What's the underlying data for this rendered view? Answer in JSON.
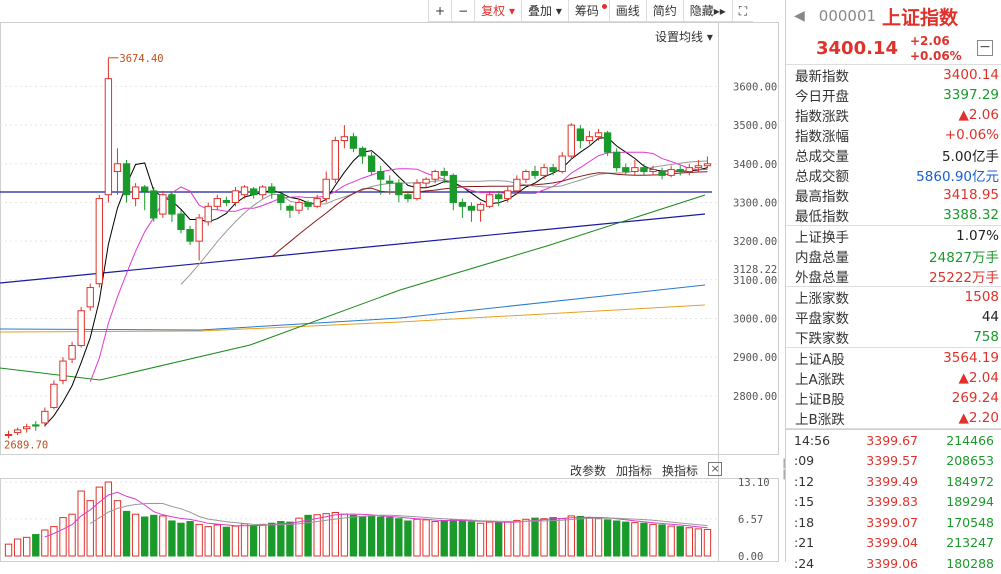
{
  "toolbar": {
    "items": [
      "+",
      "−",
      "复权",
      "叠加",
      "筹码",
      "画线",
      "简约",
      "隐藏"
    ],
    "fullscreen": "⛶"
  },
  "ma_setting": "设置均线",
  "sub_controls": {
    "a": "改参数",
    "b": "加指标",
    "c": "换指标",
    "close": "×"
  },
  "panel": {
    "code": "000001",
    "name": "上证指数",
    "price": "3400.14",
    "change": "+2.06",
    "change_pct": "+0.06%",
    "rows1": [
      [
        "最新指数",
        "3400.14",
        "red"
      ],
      [
        "今日开盘",
        "3397.29",
        "green"
      ],
      [
        "指数涨跌",
        "▲2.06",
        "red"
      ],
      [
        "指数涨幅",
        "+0.06%",
        "red"
      ],
      [
        "总成交量",
        "5.00亿手",
        "dark"
      ],
      [
        "总成交额",
        "5860.90亿元",
        "blue"
      ],
      [
        "最高指数",
        "3418.95",
        "red"
      ],
      [
        "最低指数",
        "3388.32",
        "green"
      ]
    ],
    "rows2": [
      [
        "上证换手",
        "1.07%",
        "dark"
      ],
      [
        "内盘总量",
        "24827万手",
        "green"
      ],
      [
        "外盘总量",
        "25222万手",
        "red"
      ]
    ],
    "rows3": [
      [
        "上涨家数",
        "1508",
        "red"
      ],
      [
        "平盘家数",
        "44",
        "dark"
      ],
      [
        "下跌家数",
        "758",
        "green"
      ]
    ],
    "rows4": [
      [
        "上证A股",
        "3564.19",
        "red"
      ],
      [
        "上A涨跌",
        "▲2.04",
        "red"
      ],
      [
        "上证B股",
        "269.24",
        "red"
      ],
      [
        "上B涨跌",
        "▲2.20",
        "red"
      ]
    ],
    "ticks": [
      [
        "14:56",
        "3399.67",
        "214466"
      ],
      [
        ":09",
        "3399.57",
        "208653"
      ],
      [
        ":12",
        "3399.49",
        "184972"
      ],
      [
        ":15",
        "3399.83",
        "189294"
      ],
      [
        ":18",
        "3399.07",
        "170548"
      ],
      [
        ":21",
        "3399.04",
        "213247"
      ],
      [
        ":24",
        "3399.06",
        "180288"
      ]
    ]
  },
  "chart_data": {
    "type": "candlestick",
    "y_ticks": [
      "3600.00",
      "3500.00",
      "3400.00",
      "3300.00",
      "3200.00",
      "3100.00",
      "3000.00",
      "2900.00",
      "2800.00"
    ],
    "y_ticks_val": [
      3600,
      3500,
      3400,
      3300,
      3200,
      3100,
      3000,
      2900,
      2800
    ],
    "ylim": [
      2660,
      3720
    ],
    "current_label": "3128.22",
    "high_label": "3674.40",
    "low_label": "2689.70",
    "vol_ticks": [
      "13.10",
      "6.57",
      "0.00"
    ],
    "vol_ylim": [
      0,
      13.1
    ],
    "candles": [
      [
        2700,
        2700,
        2690,
        2710
      ],
      [
        2705,
        2712,
        2698,
        2718
      ],
      [
        2715,
        2720,
        2705,
        2728
      ],
      [
        2725,
        2722,
        2710,
        2735
      ],
      [
        2730,
        2760,
        2720,
        2770
      ],
      [
        2770,
        2830,
        2765,
        2840
      ],
      [
        2840,
        2890,
        2830,
        2900
      ],
      [
        2895,
        2930,
        2885,
        2940
      ],
      [
        2930,
        3020,
        2925,
        3030
      ],
      [
        3030,
        3080,
        3020,
        3090
      ],
      [
        3090,
        3310,
        3080,
        3320
      ],
      [
        3320,
        3620,
        3300,
        3674
      ],
      [
        3380,
        3400,
        3320,
        3440
      ],
      [
        3400,
        3320,
        3300,
        3410
      ],
      [
        3310,
        3340,
        3290,
        3350
      ],
      [
        3340,
        3330,
        3280,
        3345
      ],
      [
        3330,
        3260,
        3250,
        3340
      ],
      [
        3270,
        3320,
        3260,
        3330
      ],
      [
        3320,
        3270,
        3250,
        3330
      ],
      [
        3270,
        3230,
        3220,
        3280
      ],
      [
        3230,
        3200,
        3190,
        3240
      ],
      [
        3200,
        3260,
        3150,
        3270
      ],
      [
        3250,
        3290,
        3240,
        3300
      ],
      [
        3290,
        3310,
        3280,
        3320
      ],
      [
        3305,
        3300,
        3290,
        3315
      ],
      [
        3300,
        3330,
        3290,
        3340
      ],
      [
        3320,
        3340,
        3310,
        3345
      ],
      [
        3335,
        3320,
        3310,
        3340
      ],
      [
        3320,
        3340,
        3310,
        3345
      ],
      [
        3340,
        3325,
        3310,
        3350
      ],
      [
        3320,
        3300,
        3280,
        3325
      ],
      [
        3290,
        3280,
        3260,
        3295
      ],
      [
        3280,
        3300,
        3270,
        3310
      ],
      [
        3300,
        3290,
        3280,
        3305
      ],
      [
        3290,
        3310,
        3285,
        3320
      ],
      [
        3310,
        3360,
        3300,
        3380
      ],
      [
        3360,
        3460,
        3350,
        3470
      ],
      [
        3460,
        3470,
        3440,
        3500
      ],
      [
        3470,
        3440,
        3430,
        3480
      ],
      [
        3440,
        3420,
        3400,
        3445
      ],
      [
        3420,
        3380,
        3370,
        3430
      ],
      [
        3380,
        3360,
        3320,
        3395
      ],
      [
        3355,
        3350,
        3320,
        3370
      ],
      [
        3350,
        3320,
        3300,
        3360
      ],
      [
        3320,
        3310,
        3300,
        3330
      ],
      [
        3310,
        3350,
        3305,
        3360
      ],
      [
        3350,
        3360,
        3340,
        3365
      ],
      [
        3360,
        3380,
        3350,
        3385
      ],
      [
        3380,
        3370,
        3350,
        3390
      ],
      [
        3370,
        3300,
        3280,
        3375
      ],
      [
        3300,
        3290,
        3260,
        3310
      ],
      [
        3290,
        3280,
        3250,
        3300
      ],
      [
        3280,
        3295,
        3250,
        3300
      ],
      [
        3290,
        3320,
        3285,
        3330
      ],
      [
        3320,
        3310,
        3290,
        3330
      ],
      [
        3310,
        3330,
        3300,
        3340
      ],
      [
        3330,
        3360,
        3320,
        3370
      ],
      [
        3360,
        3380,
        3350,
        3385
      ],
      [
        3380,
        3370,
        3360,
        3395
      ],
      [
        3370,
        3390,
        3360,
        3400
      ],
      [
        3390,
        3380,
        3370,
        3400
      ],
      [
        3380,
        3420,
        3375,
        3430
      ],
      [
        3420,
        3500,
        3410,
        3505
      ],
      [
        3490,
        3460,
        3440,
        3500
      ],
      [
        3460,
        3470,
        3450,
        3485
      ],
      [
        3470,
        3480,
        3460,
        3490
      ],
      [
        3480,
        3430,
        3420,
        3485
      ],
      [
        3430,
        3390,
        3380,
        3440
      ],
      [
        3390,
        3380,
        3370,
        3400
      ],
      [
        3380,
        3390,
        3370,
        3410
      ],
      [
        3390,
        3380,
        3370,
        3400
      ],
      [
        3380,
        3385,
        3370,
        3395
      ],
      [
        3380,
        3370,
        3360,
        3390
      ],
      [
        3370,
        3385,
        3365,
        3395
      ],
      [
        3385,
        3380,
        3370,
        3395
      ],
      [
        3380,
        3390,
        3370,
        3400
      ],
      [
        3390,
        3395,
        3380,
        3410
      ],
      [
        3395,
        3400,
        3388,
        3419
      ]
    ],
    "volumes": [
      2.1,
      3.0,
      3.3,
      3.8,
      4.6,
      5.2,
      6.8,
      7.4,
      11.5,
      9.8,
      12.2,
      13.1,
      9.8,
      7.9,
      7.4,
      6.9,
      7.2,
      7.1,
      6.2,
      5.8,
      6.1,
      5.6,
      5.2,
      5.5,
      5.1,
      5.3,
      5.7,
      5.4,
      5.6,
      5.8,
      6.1,
      6.0,
      6.7,
      7.2,
      7.3,
      7.5,
      7.7,
      7.4,
      7.2,
      7.0,
      7.1,
      6.9,
      6.8,
      6.6,
      6.2,
      6.5,
      6.4,
      6.1,
      6.2,
      6.4,
      6.3,
      6.0,
      5.8,
      6.0,
      5.9,
      6.1,
      6.3,
      6.5,
      6.7,
      6.6,
      6.8,
      6.6,
      7.1,
      7.0,
      6.8,
      6.6,
      6.4,
      6.2,
      6.0,
      5.9,
      5.8,
      5.6,
      5.5,
      5.3,
      5.2,
      5.0,
      4.8,
      4.7
    ]
  },
  "colors": {
    "up": "#e0322b",
    "down": "#1a9a2a",
    "grid": "#e6e6e6",
    "ma5": "#000000",
    "ma10": "#e03ad0",
    "ma20": "#999999",
    "ma60": "#8b1a1a",
    "ma120": "#1a8a1a",
    "ma250": "#2a7ad0",
    "trend": "#1a1aa0"
  }
}
